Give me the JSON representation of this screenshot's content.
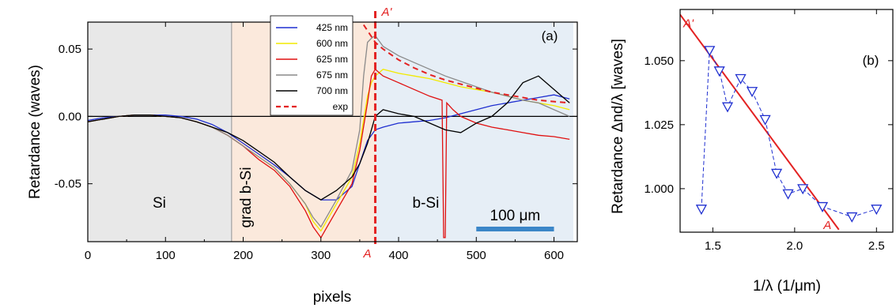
{
  "chart_data": [
    {
      "type": "line",
      "panel_label": "(a)",
      "xlabel": "pixels",
      "ylabel": "Retardance (waves)",
      "xlim": [
        0,
        630
      ],
      "ylim": [
        -0.093,
        0.07
      ],
      "x_ticks": [
        "0",
        "100",
        "200",
        "300",
        "400",
        "500",
        "600"
      ],
      "y_ticks": [
        "0.05",
        "0.00",
        "-0.05"
      ],
      "y_tick_values": [
        0.05,
        0.0,
        -0.05
      ],
      "x_tick_values": [
        0,
        100,
        200,
        300,
        400,
        500,
        600
      ],
      "regions": [
        {
          "label": "Si",
          "x": [
            0,
            185
          ],
          "color": "#e8e8e8"
        },
        {
          "label": "grad b-Si",
          "x": [
            185,
            370
          ],
          "color": "#fbe9dc"
        },
        {
          "label": "b-Si",
          "x": [
            370,
            625
          ],
          "color": "#e6eef6"
        }
      ],
      "annotations": {
        "top_marker": "A'",
        "bottom_marker": "A",
        "marker_x": 370,
        "scale_bar": "100 μm",
        "scale_bar_length": 100
      },
      "series": [
        {
          "name": "425 nm",
          "color": "#1f2fd0",
          "x": [
            0,
            20,
            40,
            60,
            80,
            100,
            120,
            140,
            160,
            180,
            200,
            220,
            240,
            260,
            280,
            300,
            320,
            340,
            350,
            360,
            370,
            380,
            400,
            420,
            440,
            460,
            480,
            500,
            520,
            540,
            560,
            580,
            600,
            620
          ],
          "y": [
            -0.003,
            -0.001,
            0.0,
            0.001,
            0.001,
            0.001,
            0.0,
            -0.002,
            -0.006,
            -0.012,
            -0.02,
            -0.028,
            -0.036,
            -0.045,
            -0.055,
            -0.062,
            -0.062,
            -0.052,
            -0.035,
            -0.018,
            -0.01,
            -0.008,
            -0.005,
            -0.004,
            -0.003,
            -0.001,
            0.002,
            0.005,
            0.008,
            0.01,
            0.012,
            0.014,
            0.016,
            0.013
          ]
        },
        {
          "name": "600 nm",
          "color": "#f2ea00",
          "x": [
            0,
            20,
            40,
            60,
            80,
            100,
            120,
            140,
            160,
            180,
            200,
            220,
            240,
            260,
            280,
            290,
            300,
            310,
            320,
            340,
            350,
            360,
            365,
            370,
            380,
            400,
            420,
            440,
            460,
            480,
            500,
            520,
            540,
            560,
            580,
            600,
            620
          ],
          "y": [
            -0.004,
            -0.002,
            0.0,
            0.001,
            0.001,
            0.0,
            -0.001,
            -0.004,
            -0.008,
            -0.014,
            -0.022,
            -0.03,
            -0.038,
            -0.05,
            -0.065,
            -0.078,
            -0.085,
            -0.075,
            -0.065,
            -0.045,
            -0.02,
            0.015,
            0.025,
            0.03,
            0.035,
            0.032,
            0.03,
            0.028,
            0.025,
            0.022,
            0.02,
            0.018,
            0.015,
            0.012,
            0.01,
            0.008,
            0.005
          ]
        },
        {
          "name": "625 nm",
          "color": "#e01010",
          "x": [
            0,
            20,
            40,
            60,
            80,
            100,
            120,
            140,
            160,
            180,
            200,
            220,
            240,
            260,
            280,
            290,
            300,
            310,
            320,
            340,
            350,
            360,
            365,
            370,
            380,
            400,
            420,
            440,
            456,
            458,
            460,
            462,
            470,
            480,
            500,
            520,
            540,
            560,
            580,
            600,
            620
          ],
          "y": [
            -0.004,
            -0.002,
            0.0,
            0.001,
            0.001,
            0.0,
            -0.001,
            -0.004,
            -0.008,
            -0.014,
            -0.022,
            -0.032,
            -0.04,
            -0.052,
            -0.07,
            -0.082,
            -0.09,
            -0.08,
            -0.07,
            -0.05,
            -0.025,
            0.01,
            0.03,
            0.035,
            0.03,
            0.025,
            0.02,
            0.015,
            0.012,
            -0.09,
            -0.09,
            0.01,
            0.005,
            0.0,
            -0.005,
            -0.008,
            -0.01,
            -0.012,
            -0.014,
            -0.015,
            -0.017
          ]
        },
        {
          "name": "675 nm",
          "color": "#8a8a8a",
          "x": [
            0,
            20,
            40,
            60,
            80,
            100,
            120,
            140,
            160,
            180,
            200,
            220,
            240,
            260,
            280,
            290,
            300,
            310,
            320,
            340,
            350,
            355,
            360,
            365,
            370,
            380,
            400,
            420,
            440,
            460,
            480,
            500,
            520,
            540,
            560,
            580,
            600,
            620
          ],
          "y": [
            -0.004,
            -0.002,
            0.0,
            0.001,
            0.001,
            0.0,
            -0.001,
            -0.004,
            -0.008,
            -0.014,
            -0.022,
            -0.03,
            -0.038,
            -0.05,
            -0.065,
            -0.075,
            -0.082,
            -0.072,
            -0.062,
            -0.04,
            -0.01,
            0.03,
            0.055,
            0.058,
            0.06,
            0.052,
            0.045,
            0.04,
            0.035,
            0.03,
            0.026,
            0.022,
            0.018,
            0.015,
            0.012,
            0.01,
            0.005,
            0.0
          ]
        },
        {
          "name": "700 nm",
          "color": "#000000",
          "x": [
            0,
            20,
            40,
            60,
            80,
            100,
            120,
            140,
            160,
            180,
            200,
            220,
            240,
            260,
            280,
            300,
            320,
            340,
            350,
            360,
            370,
            380,
            400,
            420,
            440,
            460,
            480,
            500,
            520,
            540,
            560,
            580,
            600,
            620
          ],
          "y": [
            -0.004,
            -0.002,
            0.0,
            0.001,
            0.001,
            0.0,
            -0.001,
            -0.004,
            -0.008,
            -0.012,
            -0.018,
            -0.026,
            -0.034,
            -0.045,
            -0.055,
            -0.062,
            -0.055,
            -0.045,
            -0.035,
            -0.02,
            0.0,
            0.005,
            0.002,
            0.0,
            -0.005,
            -0.01,
            -0.012,
            -0.005,
            0.0,
            0.01,
            0.025,
            0.03,
            0.02,
            0.01
          ]
        },
        {
          "name": "exp",
          "color": "#e32222",
          "dashed": true,
          "x": [
            355,
            370,
            380,
            400,
            420,
            440,
            460,
            480,
            500,
            520,
            540,
            560,
            580,
            600,
            620
          ],
          "y": [
            0.068,
            0.055,
            0.05,
            0.042,
            0.036,
            0.031,
            0.027,
            0.024,
            0.021,
            0.018,
            0.016,
            0.014,
            0.012,
            0.011,
            0.01
          ]
        }
      ]
    },
    {
      "type": "line",
      "panel_label": "(b)",
      "xlabel": "1/λ (1/μm)",
      "ylabel": "Retardance Δnd/λ [waves]",
      "xlim": [
        1.3,
        2.6
      ],
      "ylim": [
        0.983,
        1.07
      ],
      "x_ticks": [
        "1.5",
        "2.0",
        "2.5"
      ],
      "x_tick_values": [
        1.5,
        2.0,
        2.5
      ],
      "y_ticks": [
        "1.050",
        "1.025",
        "1.000"
      ],
      "y_tick_values": [
        1.05,
        1.025,
        1.0
      ],
      "annotations": {
        "top_marker": "A'",
        "bottom_marker": "A"
      },
      "series": [
        {
          "name": "",
          "color": "#1f2fd0",
          "marker": "triangle-down",
          "x": [
            1.43,
            1.48,
            1.54,
            1.59,
            1.67,
            1.74,
            1.82,
            1.89,
            1.96,
            2.05,
            2.17,
            2.35,
            2.5
          ],
          "y": [
            0.992,
            1.054,
            1.046,
            1.032,
            1.043,
            1.038,
            1.027,
            1.006,
            0.998,
            1.0,
            0.993,
            0.989,
            0.992
          ]
        },
        {
          "name": "",
          "color": "#e32222",
          "x": [
            1.3,
            2.27
          ],
          "y": [
            1.068,
            0.984
          ]
        }
      ]
    }
  ]
}
